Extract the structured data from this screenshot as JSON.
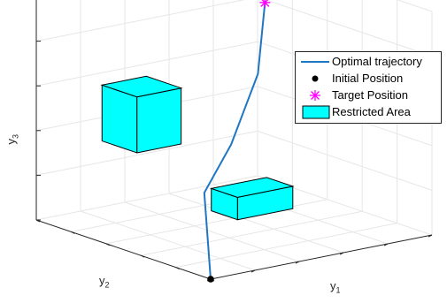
{
  "chart_data": {
    "type": "line3d",
    "title": "",
    "axes": {
      "x": {
        "label_main": "y",
        "label_sub": "1"
      },
      "y": {
        "label_main": "y",
        "label_sub": "2"
      },
      "z": {
        "label_main": "y",
        "label_sub": "3"
      }
    },
    "grid": true,
    "box": true,
    "legend": {
      "placement": "top-right",
      "entries": [
        {
          "key": "trajectory",
          "label": "Optimal trajectory",
          "color": "#1f77c4"
        },
        {
          "key": "initial",
          "label": "Initial Position",
          "color": "#000000"
        },
        {
          "key": "target",
          "label": "Target Position",
          "color": "#ff00ff"
        },
        {
          "key": "restricted",
          "label": "Restricted Area",
          "color": "#00ffff"
        }
      ]
    },
    "series": [
      {
        "name": "Optimal trajectory",
        "points": [
          [
            0,
            0,
            0
          ],
          [
            0.05,
            0.1,
            0.35
          ],
          [
            0.25,
            0.2,
            0.5
          ],
          [
            0.45,
            0.3,
            0.75
          ],
          [
            0.6,
            0.45,
            1.0
          ]
        ]
      },
      {
        "name": "Initial Position",
        "points": [
          [
            0,
            0,
            0
          ]
        ]
      },
      {
        "name": "Target Position",
        "points": [
          [
            0.6,
            0.45,
            1.0
          ]
        ]
      }
    ],
    "restricted_areas": [
      {
        "x": [
          0.1,
          0.3
        ],
        "y": [
          0.55,
          0.75
        ],
        "z": [
          0.4,
          0.65
        ]
      },
      {
        "x": [
          0.2,
          0.45
        ],
        "y": [
          0.1,
          0.25
        ],
        "z": [
          0.2,
          0.3
        ]
      }
    ]
  }
}
